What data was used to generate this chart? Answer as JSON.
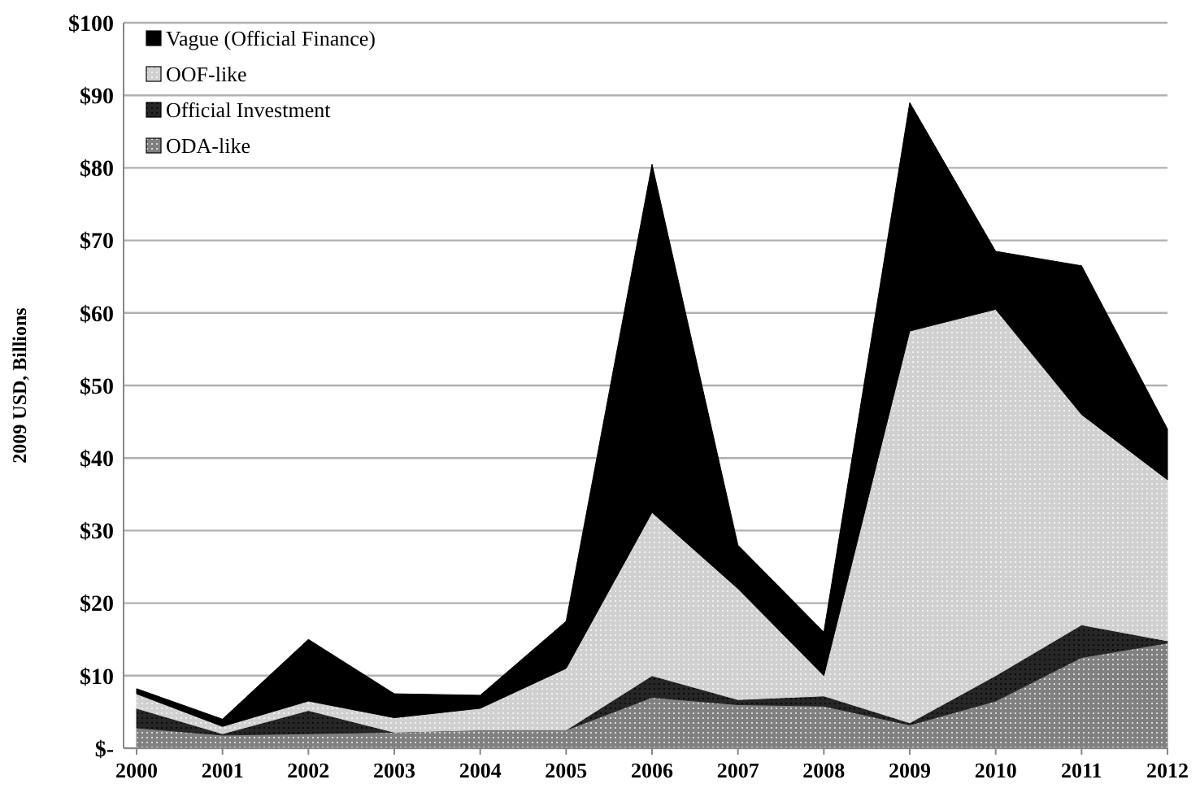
{
  "chart_data": {
    "type": "area",
    "stacked": true,
    "ylabel": "2009 USD, Billions",
    "categories": [
      "2000",
      "2001",
      "2002",
      "2003",
      "2004",
      "2005",
      "2006",
      "2007",
      "2008",
      "2009",
      "2010",
      "2011",
      "2012"
    ],
    "series": [
      {
        "name": "ODA-like",
        "color": "#808080",
        "values": [
          2.8,
          1.8,
          2,
          2.2,
          2.5,
          2.5,
          7,
          6,
          5.8,
          3.2,
          6.5,
          12.5,
          14.5
        ]
      },
      {
        "name": "Official Investment",
        "color": "#262626",
        "values": [
          2.7,
          0.2,
          3.2,
          0,
          0,
          0,
          3,
          0.7,
          1.4,
          0.3,
          3.5,
          4.5,
          0.3
        ]
      },
      {
        "name": "OOF-like",
        "color": "#d0d0d0",
        "values": [
          2,
          1,
          1.3,
          2,
          3,
          8.5,
          22.5,
          15.3,
          2.8,
          54,
          50.5,
          29,
          22.2
        ]
      },
      {
        "name": "Vague (Official Finance)",
        "color": "#000000",
        "values": [
          0.7,
          1,
          8.5,
          3.3,
          1.8,
          6.5,
          48,
          6,
          6,
          31.5,
          8,
          20.5,
          7
        ]
      }
    ],
    "ylim": [
      0,
      100
    ],
    "yticks": [
      {
        "value": 0,
        "label": "$-"
      },
      {
        "value": 10,
        "label": "$10"
      },
      {
        "value": 20,
        "label": "$20"
      },
      {
        "value": 30,
        "label": "$30"
      },
      {
        "value": 40,
        "label": "$40"
      },
      {
        "value": 50,
        "label": "$50"
      },
      {
        "value": 60,
        "label": "$60"
      },
      {
        "value": 70,
        "label": "$70"
      },
      {
        "value": 80,
        "label": "$80"
      },
      {
        "value": 90,
        "label": "$90"
      },
      {
        "value": 100,
        "label": "$100"
      }
    ],
    "grid": "y",
    "legend": "top left"
  }
}
